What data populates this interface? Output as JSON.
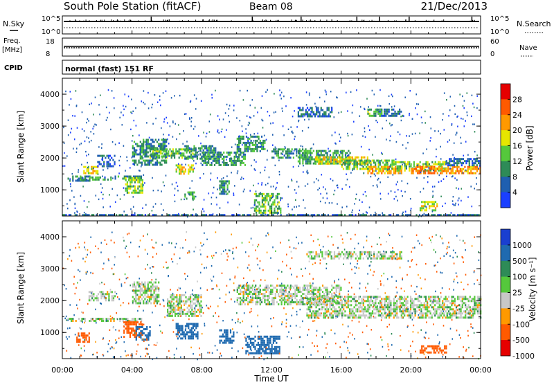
{
  "header": {
    "title": "South Pole Station (fitACF)",
    "beam": "Beam 08",
    "date": "21/Dec/2013"
  },
  "panels": {
    "nsky_label": "N.Sky",
    "nsearch_label": "N.Search",
    "nsky_ticks": [
      "10^5",
      "10^0"
    ],
    "nsearch_ticks": [
      "10^5",
      "10^0"
    ],
    "freq_label": "Freq.",
    "freq_unit": "[MHz]",
    "freq_ticks": [
      "18",
      "8"
    ],
    "nave_label": "Nave",
    "nave_ticks": [
      "60",
      "0"
    ],
    "cpid_label": "CPID",
    "cpid_text": "normal (fast) 151 RF"
  },
  "chart_data": [
    {
      "type": "heatmap",
      "name": "power",
      "ylabel": "Slant Range [km]",
      "xlabel": "",
      "ylim": [
        180,
        4500
      ],
      "xlim": [
        0,
        24
      ],
      "y_ticks": [
        "1000",
        "2000",
        "3000",
        "4000"
      ],
      "colorbar_label": "Power [dB]",
      "colorbar_ticks": [
        "4",
        "8",
        "12",
        "16",
        "20",
        "24",
        "28"
      ],
      "colorbar_colors": [
        "#1a3fff",
        "#1f5fb0",
        "#2e8b57",
        "#55c83c",
        "#e6e600",
        "#ff9900",
        "#ff5a00",
        "#e60000"
      ],
      "colorbar_range": [
        0,
        30
      ],
      "echo_regions": [
        {
          "x": [
            0.3,
            1.6
          ],
          "y": [
            1300,
            1450
          ],
          "v": 8
        },
        {
          "x": [
            1.0,
            2.8
          ],
          "y": [
            1350,
            1420
          ],
          "v": 10
        },
        {
          "x": [
            1.2,
            2.0
          ],
          "y": [
            1550,
            1750
          ],
          "v": 18
        },
        {
          "x": [
            2.0,
            3.0
          ],
          "y": [
            1750,
            2100
          ],
          "v": 6
        },
        {
          "x": [
            3.0,
            4.5
          ],
          "y": [
            1350,
            1450
          ],
          "v": 8
        },
        {
          "x": [
            3.6,
            4.6
          ],
          "y": [
            900,
            1400
          ],
          "v": 14
        },
        {
          "x": [
            4.0,
            6.0
          ],
          "y": [
            1800,
            2600
          ],
          "v": 9
        },
        {
          "x": [
            5.0,
            7.5
          ],
          "y": [
            2000,
            2300
          ],
          "v": 12
        },
        {
          "x": [
            6.5,
            7.5
          ],
          "y": [
            1500,
            1800
          ],
          "v": 18
        },
        {
          "x": [
            7.0,
            9.0
          ],
          "y": [
            2000,
            2400
          ],
          "v": 9
        },
        {
          "x": [
            7.0,
            7.6
          ],
          "y": [
            700,
            950
          ],
          "v": 12
        },
        {
          "x": [
            8.0,
            10.5
          ],
          "y": [
            1800,
            2200
          ],
          "v": 10
        },
        {
          "x": [
            9.0,
            9.6
          ],
          "y": [
            900,
            1300
          ],
          "v": 9
        },
        {
          "x": [
            10.0,
            11.6
          ],
          "y": [
            2200,
            2700
          ],
          "v": 9
        },
        {
          "x": [
            11.0,
            12.5
          ],
          "y": [
            300,
            900
          ],
          "v": 12
        },
        {
          "x": [
            12.0,
            14.0
          ],
          "y": [
            2000,
            2300
          ],
          "v": 9
        },
        {
          "x": [
            13.5,
            16.5
          ],
          "y": [
            1850,
            2250
          ],
          "v": 11
        },
        {
          "x": [
            14.5,
            17.5
          ],
          "y": [
            1850,
            2050
          ],
          "v": 18
        },
        {
          "x": [
            16.0,
            19.0
          ],
          "y": [
            1650,
            1950
          ],
          "v": 12
        },
        {
          "x": [
            17.5,
            19.5
          ],
          "y": [
            1550,
            1750
          ],
          "v": 20
        },
        {
          "x": [
            19.0,
            22.0
          ],
          "y": [
            1600,
            1900
          ],
          "v": 14
        },
        {
          "x": [
            20.0,
            24.0
          ],
          "y": [
            1550,
            1750
          ],
          "v": 22
        },
        {
          "x": [
            22.0,
            24.0
          ],
          "y": [
            1750,
            2000
          ],
          "v": 6
        },
        {
          "x": [
            13.5,
            15.5
          ],
          "y": [
            3300,
            3600
          ],
          "v": 6
        },
        {
          "x": [
            18.0,
            19.5
          ],
          "y": [
            3300,
            3550
          ],
          "v": 6
        },
        {
          "x": [
            17.5,
            18.3
          ],
          "y": [
            3350,
            3550
          ],
          "v": 12
        },
        {
          "x": [
            20.5,
            21.5
          ],
          "y": [
            380,
            650
          ],
          "v": 16
        },
        {
          "x": [
            0,
            24
          ],
          "y": [
            180,
            240
          ],
          "v": 6
        }
      ]
    },
    {
      "type": "heatmap",
      "name": "velocity",
      "ylabel": "Slant Range [km]",
      "xlabel": "Time UT",
      "ylim": [
        180,
        4500
      ],
      "xlim": [
        0,
        24
      ],
      "x_ticks": [
        "00:00",
        "04:00",
        "08:00",
        "12:00",
        "16:00",
        "20:00",
        "00:00"
      ],
      "y_ticks": [
        "1000",
        "2000",
        "3000",
        "4000"
      ],
      "colorbar_label": "Velocity [m s⁻¹]",
      "colorbar_ticks": [
        "1000",
        "500",
        "100",
        "25",
        "-25",
        "-100",
        "-500",
        "-1000"
      ],
      "colorbar_colors": [
        "#1a3fd0",
        "#1f6ab0",
        "#2e8b57",
        "#55c83c",
        "#c8c8c8",
        "#ff9900",
        "#ff5a00",
        "#e60000"
      ],
      "echo_regions": [
        {
          "x": [
            0.3,
            4.5
          ],
          "y": [
            1330,
            1460
          ],
          "v": 0
        },
        {
          "x": [
            0.8,
            1.5
          ],
          "y": [
            700,
            1000
          ],
          "v": -150
        },
        {
          "x": [
            3.5,
            4.6
          ],
          "y": [
            850,
            1350
          ],
          "v": -250
        },
        {
          "x": [
            4.0,
            5.5
          ],
          "y": [
            1900,
            2600
          ],
          "v": 0
        },
        {
          "x": [
            4.2,
            5.0
          ],
          "y": [
            800,
            1200
          ],
          "v": 150
        },
        {
          "x": [
            6.0,
            8.0
          ],
          "y": [
            1500,
            2200
          ],
          "v": 0
        },
        {
          "x": [
            6.5,
            7.8
          ],
          "y": [
            800,
            1300
          ],
          "v": 150
        },
        {
          "x": [
            9.0,
            9.8
          ],
          "y": [
            700,
            1100
          ],
          "v": 300
        },
        {
          "x": [
            10.5,
            12.5
          ],
          "y": [
            350,
            900
          ],
          "v": 300
        },
        {
          "x": [
            10.0,
            16.0
          ],
          "y": [
            1900,
            2500
          ],
          "v": 0
        },
        {
          "x": [
            14.0,
            24.0
          ],
          "y": [
            1450,
            2150
          ],
          "v": 0
        },
        {
          "x": [
            14.0,
            19.5
          ],
          "y": [
            3300,
            3550
          ],
          "v": 0
        },
        {
          "x": [
            20.5,
            22.0
          ],
          "y": [
            380,
            600
          ],
          "v": -300
        },
        {
          "x": [
            1.5,
            3.0
          ],
          "y": [
            2000,
            2300
          ],
          "v": 0
        }
      ]
    }
  ]
}
